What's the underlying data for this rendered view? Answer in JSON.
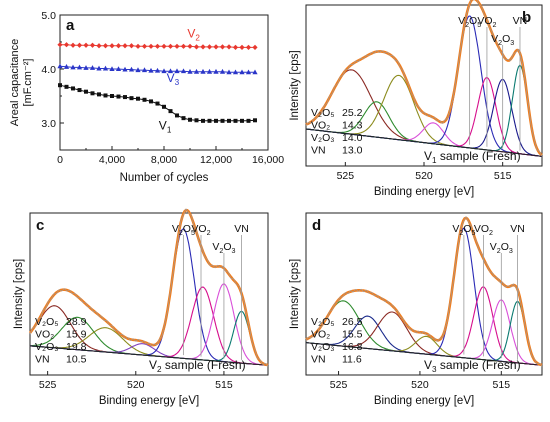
{
  "chart_data": [
    {
      "panel": "a",
      "type": "line",
      "xlabel": "Number of cycles",
      "ylabel_lines": [
        "Areal capacitance",
        "[mF.cm⁻²]"
      ],
      "xlim": [
        0,
        16000
      ],
      "ylim": [
        2.5,
        5.0
      ],
      "xticks": [
        0,
        4000,
        8000,
        12000,
        16000
      ],
      "xtick_labels": [
        "0",
        "4,000",
        "8,000",
        "12,000",
        "16,000"
      ],
      "yticks": [
        3.0,
        4.0,
        5.0
      ],
      "ytick_labels": [
        "3.0",
        "4.0",
        "5.0"
      ],
      "series": [
        {
          "name": "V2",
          "sub": "2",
          "color": "#e8382f",
          "marker": "diamond",
          "x": [
            0,
            500,
            1000,
            1500,
            2000,
            2500,
            3000,
            3500,
            4000,
            4500,
            5000,
            5500,
            6000,
            6500,
            7000,
            7500,
            8000,
            8500,
            9000,
            9500,
            10000,
            10500,
            11000,
            11500,
            12000,
            12500,
            13000,
            13500,
            14000,
            14500,
            15000
          ],
          "y": [
            4.45,
            4.45,
            4.44,
            4.44,
            4.44,
            4.44,
            4.43,
            4.43,
            4.43,
            4.43,
            4.43,
            4.43,
            4.42,
            4.42,
            4.42,
            4.42,
            4.42,
            4.42,
            4.42,
            4.42,
            4.42,
            4.41,
            4.41,
            4.41,
            4.41,
            4.41,
            4.41,
            4.4,
            4.4,
            4.4,
            4.4
          ]
        },
        {
          "name": "V3",
          "sub": "3",
          "color": "#2a35c8",
          "marker": "triangle",
          "x": [
            0,
            500,
            1000,
            1500,
            2000,
            2500,
            3000,
            3500,
            4000,
            4500,
            5000,
            5500,
            6000,
            6500,
            7000,
            7500,
            8000,
            8500,
            9000,
            9500,
            10000,
            10500,
            11000,
            11500,
            12000,
            12500,
            13000,
            13500,
            14000,
            14500,
            15000
          ],
          "y": [
            4.05,
            4.04,
            4.03,
            4.03,
            4.02,
            4.02,
            4.01,
            4.01,
            4.0,
            4.0,
            3.99,
            3.99,
            3.98,
            3.98,
            3.97,
            3.97,
            3.96,
            3.96,
            3.96,
            3.96,
            3.95,
            3.95,
            3.95,
            3.95,
            3.95,
            3.95,
            3.94,
            3.94,
            3.94,
            3.94,
            3.94
          ]
        },
        {
          "name": "V1",
          "sub": "1",
          "color": "#111111",
          "marker": "square",
          "x": [
            0,
            500,
            1000,
            1500,
            2000,
            2500,
            3000,
            3500,
            4000,
            4500,
            5000,
            5500,
            6000,
            6500,
            7000,
            7500,
            8000,
            8500,
            9000,
            9500,
            10000,
            10500,
            11000,
            11500,
            12000,
            12500,
            13000,
            13500,
            14000,
            14500,
            15000
          ],
          "y": [
            3.7,
            3.67,
            3.64,
            3.61,
            3.58,
            3.55,
            3.53,
            3.51,
            3.5,
            3.49,
            3.48,
            3.46,
            3.45,
            3.43,
            3.4,
            3.36,
            3.3,
            3.22,
            3.14,
            3.09,
            3.06,
            3.05,
            3.04,
            3.04,
            3.04,
            3.04,
            3.04,
            3.04,
            3.04,
            3.04,
            3.05
          ]
        }
      ]
    },
    {
      "panel": "b",
      "type": "line",
      "xlabel": "Binding energy [eV]",
      "ylabel": "Intensity [cps]",
      "xlim": [
        527.5,
        512.5
      ],
      "xticks": [
        525,
        520,
        515
      ],
      "sample_pre": "V",
      "sample_sub": "1",
      "sample_post": " sample (Fresh)",
      "table": [
        [
          "V₂O₅",
          "25.2"
        ],
        [
          "VO₂",
          "14.3"
        ],
        [
          "V₂O₃",
          "14.0"
        ],
        [
          "VN",
          "13.0"
        ]
      ],
      "annotations": [
        {
          "main": "V",
          "sub": "2",
          "main2": "O",
          "sub2": "5",
          "x": 517.1
        },
        {
          "main": "VO",
          "sub": "2",
          "main2": "",
          "sub2": "",
          "x": 516.0
        },
        {
          "main": "V",
          "sub": "2",
          "main2": "O",
          "sub2": "3",
          "x": 515.0
        },
        {
          "main": "VN",
          "sub": "",
          "main2": "",
          "sub2": "",
          "x": 513.9
        }
      ],
      "baseline": [
        0.06,
        0.23
      ],
      "peaks": [
        {
          "center": 524.6,
          "height": 0.4,
          "width": 1.25,
          "color": "#8b2a24"
        },
        {
          "center": 523.0,
          "height": 0.22,
          "width": 0.8,
          "color": "#2e8b2e"
        },
        {
          "center": 521.6,
          "height": 0.4,
          "width": 0.95,
          "color": "#8c8c1e"
        },
        {
          "center": 519.4,
          "height": 0.13,
          "width": 0.65,
          "color": "#d94fd9"
        },
        {
          "center": 517.1,
          "height": 0.82,
          "width": 0.72,
          "color": "#2a2ab5"
        },
        {
          "center": 516.0,
          "height": 0.45,
          "width": 0.58,
          "color": "#d60e8c"
        },
        {
          "center": 515.0,
          "height": 0.45,
          "width": 0.58,
          "color": "#1a1a8c"
        },
        {
          "center": 513.9,
          "height": 0.55,
          "width": 0.48,
          "color": "#0a7a70"
        }
      ]
    },
    {
      "panel": "c",
      "type": "line",
      "xlabel": "Binding energy [eV]",
      "ylabel": "Intensity [cps]",
      "xlim": [
        526.0,
        512.5
      ],
      "xticks": [
        525,
        520,
        515
      ],
      "sample_pre": "V",
      "sample_sub": "2",
      "sample_post": " sample (Fresh)",
      "table": [
        [
          "V₂O₅",
          "28.9"
        ],
        [
          "VO₂",
          "15.9"
        ],
        [
          "V₂O₃",
          "19.8"
        ],
        [
          "VN",
          "10.5"
        ]
      ],
      "annotations": [
        {
          "main": "V",
          "sub": "2",
          "main2": "O",
          "sub2": "5",
          "x": 517.3
        },
        {
          "main": "VO",
          "sub": "2",
          "main2": "",
          "sub2": "",
          "x": 516.3
        },
        {
          "main": "V",
          "sub": "2",
          "main2": "O",
          "sub2": "3",
          "x": 515.0
        },
        {
          "main": "VN",
          "sub": "",
          "main2": "",
          "sub2": "",
          "x": 514.0
        }
      ],
      "baseline": [
        0.06,
        0.18
      ],
      "peaks": [
        {
          "center": 524.6,
          "height": 0.26,
          "width": 0.9,
          "color": "#8b2a24"
        },
        {
          "center": 523.3,
          "height": 0.2,
          "width": 0.9,
          "color": "#2e8b2e"
        },
        {
          "center": 521.7,
          "height": 0.15,
          "width": 0.95,
          "color": "#8c8c1e"
        },
        {
          "center": 519.6,
          "height": 0.07,
          "width": 0.65,
          "color": "#7f3fbf"
        },
        {
          "center": 517.3,
          "height": 0.8,
          "width": 0.62,
          "color": "#2a2ab5"
        },
        {
          "center": 516.2,
          "height": 0.45,
          "width": 0.62,
          "color": "#d60e8c"
        },
        {
          "center": 515.0,
          "height": 0.48,
          "width": 0.58,
          "color": "#d94fd9"
        },
        {
          "center": 514.0,
          "height": 0.32,
          "width": 0.45,
          "color": "#0a7a70"
        }
      ]
    },
    {
      "panel": "d",
      "type": "line",
      "xlabel": "Binding energy [eV]",
      "ylabel": "Intensity [cps]",
      "xlim": [
        527.0,
        512.5
      ],
      "xticks": [
        525,
        520,
        515
      ],
      "sample_pre": "V",
      "sample_sub": "3",
      "sample_post": " sample (Fresh)",
      "table": [
        [
          "V₂O₅",
          "26.5"
        ],
        [
          "VO₂",
          "15.5"
        ],
        [
          "V₂O₃",
          "16.8"
        ],
        [
          "VN",
          "11.6"
        ]
      ],
      "annotations": [
        {
          "main": "V",
          "sub": "2",
          "main2": "O",
          "sub2": "5",
          "x": 517.3
        },
        {
          "main": "VO",
          "sub": "2",
          "main2": "",
          "sub2": "",
          "x": 516.1
        },
        {
          "main": "V",
          "sub": "2",
          "main2": "O",
          "sub2": "3",
          "x": 515.0
        },
        {
          "main": "VN",
          "sub": "",
          "main2": "",
          "sub2": "",
          "x": 514.0
        }
      ],
      "baseline": [
        0.06,
        0.2
      ],
      "peaks": [
        {
          "center": 524.7,
          "height": 0.28,
          "width": 1.0,
          "color": "#2e8b2e"
        },
        {
          "center": 523.2,
          "height": 0.2,
          "width": 0.8,
          "color": "#1a2a8c"
        },
        {
          "center": 521.7,
          "height": 0.24,
          "width": 0.9,
          "color": "#8b2a24"
        },
        {
          "center": 519.6,
          "height": 0.11,
          "width": 0.65,
          "color": "#8c8c1e"
        },
        {
          "center": 517.3,
          "height": 0.8,
          "width": 0.62,
          "color": "#2a2ab5"
        },
        {
          "center": 516.1,
          "height": 0.45,
          "width": 0.58,
          "color": "#d60e8c"
        },
        {
          "center": 515.0,
          "height": 0.38,
          "width": 0.55,
          "color": "#d94fd9"
        },
        {
          "center": 514.0,
          "height": 0.38,
          "width": 0.45,
          "color": "#0a7a70"
        }
      ]
    }
  ]
}
